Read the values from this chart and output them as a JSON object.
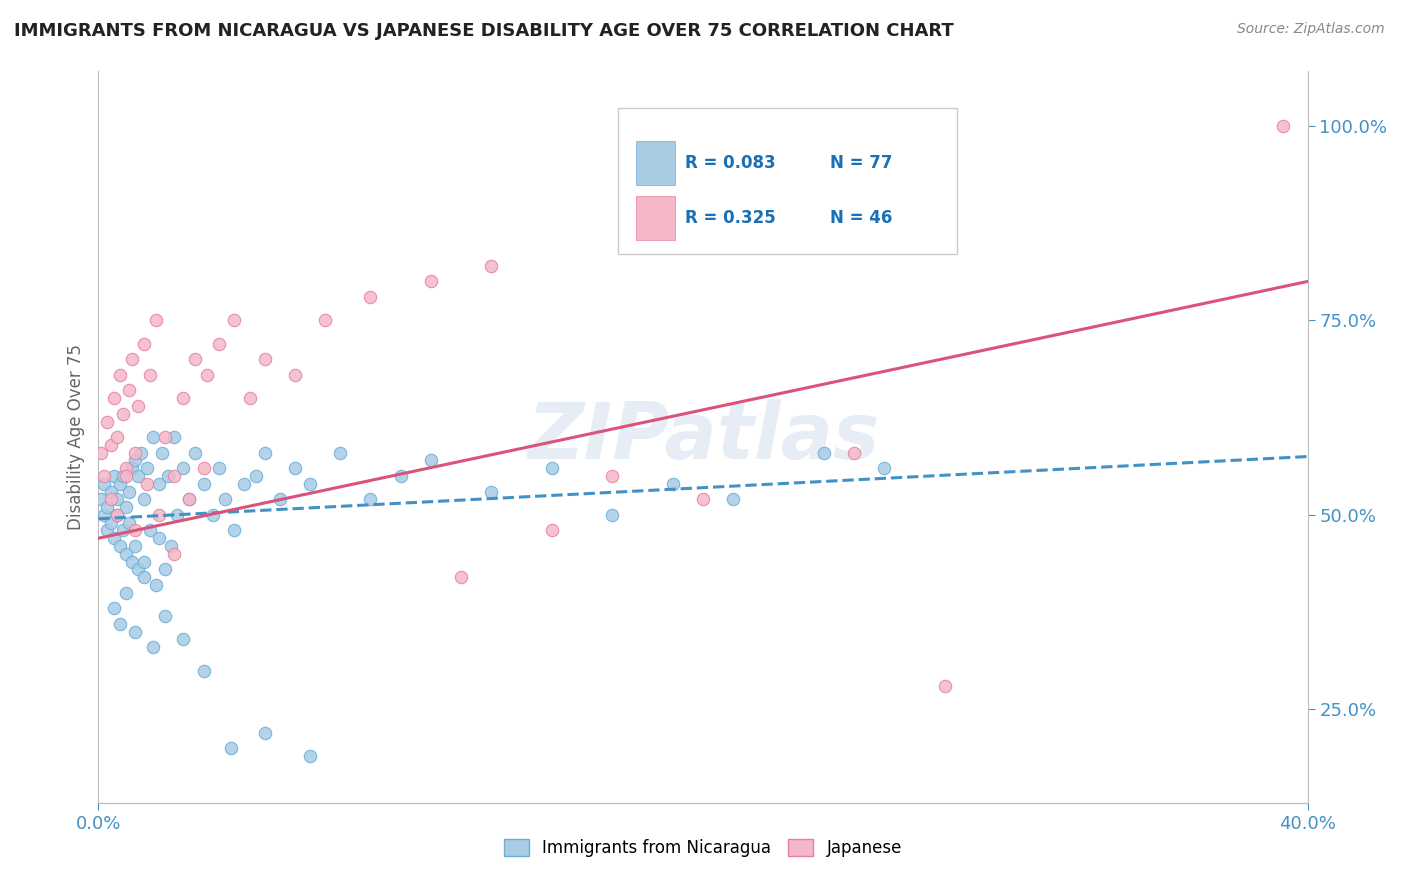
{
  "title": "IMMIGRANTS FROM NICARAGUA VS JAPANESE DISABILITY AGE OVER 75 CORRELATION CHART",
  "source_text": "Source: ZipAtlas.com",
  "ylabel": "Disability Age Over 75",
  "xlim": [
    0.0,
    0.4
  ],
  "ylim": [
    0.13,
    1.07
  ],
  "ytick_positions": [
    0.25,
    0.5,
    0.75,
    1.0
  ],
  "ytick_labels": [
    "25.0%",
    "50.0%",
    "75.0%",
    "100.0%"
  ],
  "legend_r1": "R = 0.083",
  "legend_n1": "N = 77",
  "legend_r2": "R = 0.325",
  "legend_n2": "N = 46",
  "color_blue": "#a8cce4",
  "color_blue_edge": "#6aaed6",
  "color_pink": "#f4b8c8",
  "color_pink_edge": "#e87fa0",
  "color_blue_line": "#4292c6",
  "color_pink_line": "#d9537a",
  "watermark": "ZIPatlas",
  "trendline_nic_y0": 0.495,
  "trendline_nic_y1": 0.575,
  "trendline_jap_y0": 0.47,
  "trendline_jap_y1": 0.8,
  "background_color": "#ffffff",
  "grid_color": "#e0e0e0",
  "nic_x": [
    0.001,
    0.002,
    0.002,
    0.003,
    0.003,
    0.004,
    0.004,
    0.005,
    0.005,
    0.006,
    0.006,
    0.007,
    0.007,
    0.008,
    0.008,
    0.009,
    0.009,
    0.01,
    0.01,
    0.011,
    0.011,
    0.012,
    0.012,
    0.013,
    0.013,
    0.014,
    0.015,
    0.015,
    0.016,
    0.017,
    0.018,
    0.019,
    0.02,
    0.02,
    0.021,
    0.022,
    0.023,
    0.024,
    0.025,
    0.026,
    0.028,
    0.03,
    0.032,
    0.035,
    0.038,
    0.04,
    0.042,
    0.045,
    0.048,
    0.052,
    0.055,
    0.06,
    0.065,
    0.07,
    0.08,
    0.09,
    0.1,
    0.11,
    0.13,
    0.15,
    0.17,
    0.19,
    0.21,
    0.24,
    0.26,
    0.005,
    0.007,
    0.009,
    0.012,
    0.015,
    0.018,
    0.022,
    0.028,
    0.035,
    0.044,
    0.055,
    0.07
  ],
  "nic_y": [
    0.52,
    0.5,
    0.54,
    0.51,
    0.48,
    0.53,
    0.49,
    0.55,
    0.47,
    0.52,
    0.5,
    0.54,
    0.46,
    0.55,
    0.48,
    0.51,
    0.45,
    0.53,
    0.49,
    0.56,
    0.44,
    0.57,
    0.46,
    0.55,
    0.43,
    0.58,
    0.52,
    0.44,
    0.56,
    0.48,
    0.6,
    0.41,
    0.54,
    0.47,
    0.58,
    0.43,
    0.55,
    0.46,
    0.6,
    0.5,
    0.56,
    0.52,
    0.58,
    0.54,
    0.5,
    0.56,
    0.52,
    0.48,
    0.54,
    0.55,
    0.58,
    0.52,
    0.56,
    0.54,
    0.58,
    0.52,
    0.55,
    0.57,
    0.53,
    0.56,
    0.5,
    0.54,
    0.52,
    0.58,
    0.56,
    0.38,
    0.36,
    0.4,
    0.35,
    0.42,
    0.33,
    0.37,
    0.34,
    0.3,
    0.2,
    0.22,
    0.19
  ],
  "jap_x": [
    0.001,
    0.002,
    0.003,
    0.004,
    0.005,
    0.006,
    0.007,
    0.008,
    0.009,
    0.01,
    0.011,
    0.012,
    0.013,
    0.015,
    0.017,
    0.019,
    0.022,
    0.025,
    0.028,
    0.032,
    0.036,
    0.04,
    0.045,
    0.05,
    0.055,
    0.065,
    0.075,
    0.09,
    0.11,
    0.13,
    0.004,
    0.006,
    0.009,
    0.012,
    0.016,
    0.02,
    0.025,
    0.03,
    0.035,
    0.12,
    0.15,
    0.17,
    0.2,
    0.25,
    0.28,
    0.392
  ],
  "jap_y": [
    0.58,
    0.55,
    0.62,
    0.59,
    0.65,
    0.6,
    0.68,
    0.63,
    0.56,
    0.66,
    0.7,
    0.58,
    0.64,
    0.72,
    0.68,
    0.75,
    0.6,
    0.55,
    0.65,
    0.7,
    0.68,
    0.72,
    0.75,
    0.65,
    0.7,
    0.68,
    0.75,
    0.78,
    0.8,
    0.82,
    0.52,
    0.5,
    0.55,
    0.48,
    0.54,
    0.5,
    0.45,
    0.52,
    0.56,
    0.42,
    0.48,
    0.55,
    0.52,
    0.58,
    0.28,
    1.0
  ]
}
